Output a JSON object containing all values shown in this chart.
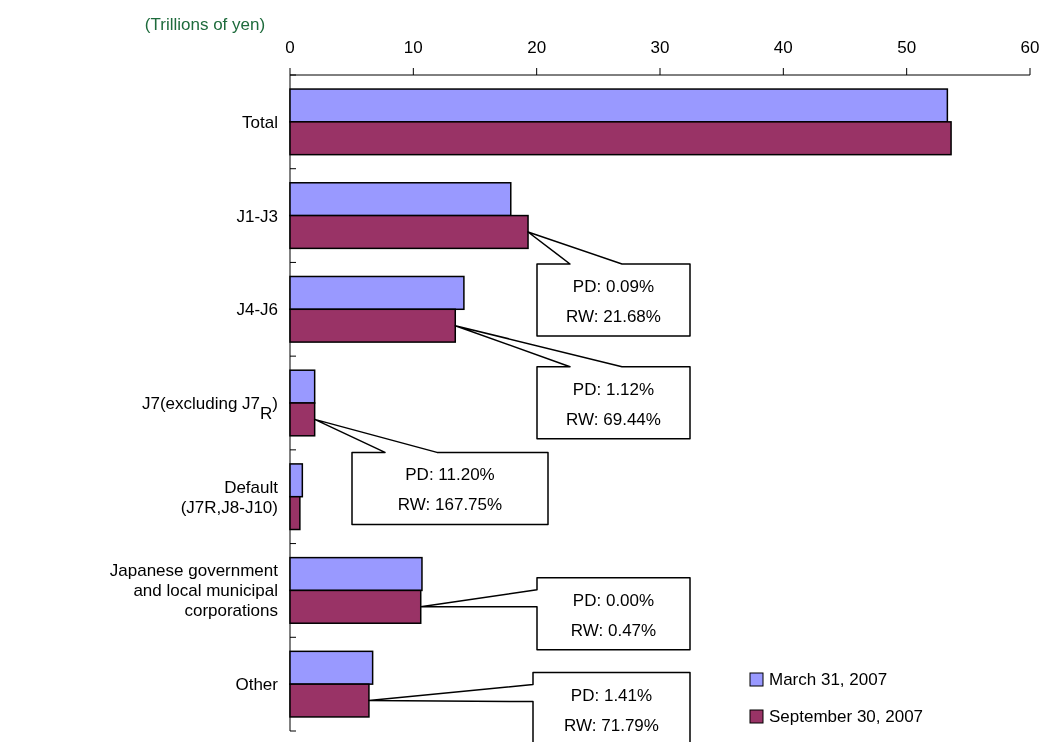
{
  "chart_data": {
    "type": "bar",
    "orientation": "horizontal",
    "xlabel": "(Trillions of yen)",
    "categories": [
      "Total",
      "J1-J3",
      "J4-J6",
      "J7(excluding J7$_{R}$)",
      "Default\n(J7R,J8-J10)",
      "Japanese government\nand local municipal\ncorporations",
      "Other"
    ],
    "series": [
      {
        "name": "March 31, 2007",
        "color": "#9999ff",
        "values": [
          53.3,
          17.9,
          14.1,
          2.0,
          1.0,
          10.7,
          6.7
        ]
      },
      {
        "name": "September 30, 2007",
        "color": "#993366",
        "values": [
          53.6,
          19.3,
          13.4,
          2.0,
          0.8,
          10.6,
          6.4
        ]
      }
    ],
    "xlim": [
      0,
      60
    ],
    "xticks": [
      0,
      10,
      20,
      30,
      40,
      50,
      60
    ],
    "legend": "bottom right",
    "annotations": [
      "PD:  0.09%\nRW: 21.68%",
      "PD:  1.12%\nRW: 69.44%",
      "PD:  11.20%\nRW: 167.75%",
      "PD: 0.00%\nRW: 0.47%",
      "PD:  1.41%\nRW: 71.79%"
    ]
  }
}
